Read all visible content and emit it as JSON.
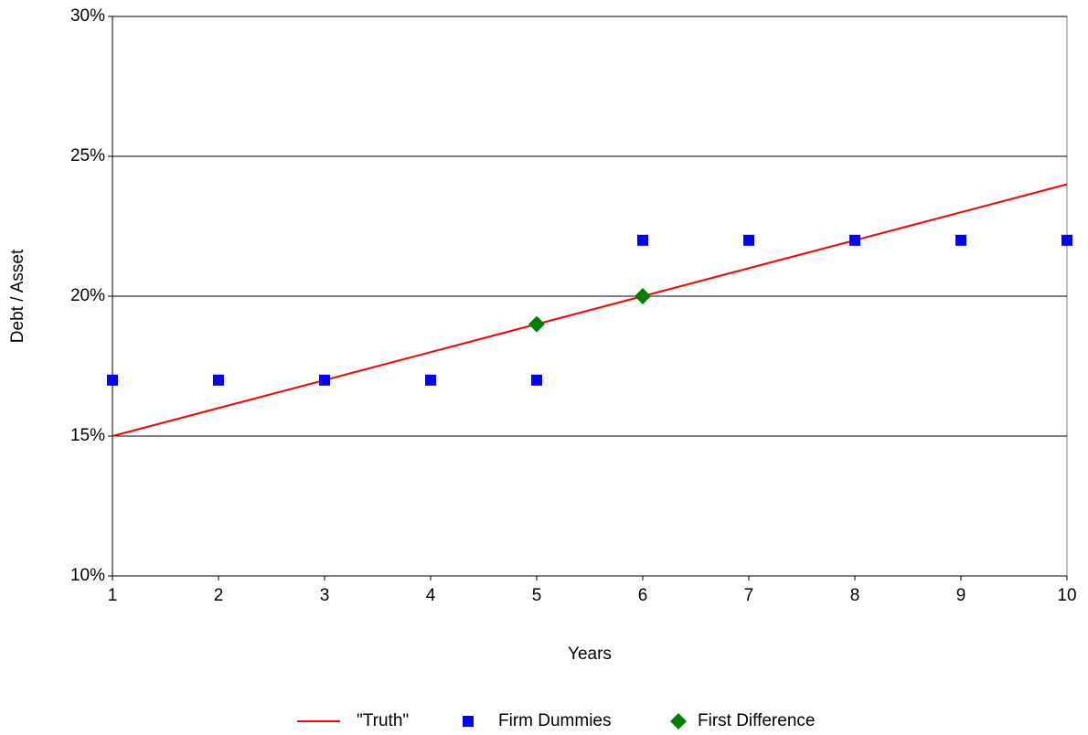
{
  "chart_data": {
    "type": "line",
    "xlabel": "Years",
    "ylabel": "Debt / Asset",
    "xlim": [
      1,
      10
    ],
    "xticks": [
      1,
      2,
      3,
      4,
      5,
      6,
      7,
      8,
      9,
      10
    ],
    "ylim": [
      10,
      30
    ],
    "yticks": [
      {
        "value": 10,
        "label": "10%"
      },
      {
        "value": 15,
        "label": "15%"
      },
      {
        "value": 20,
        "label": "20%"
      },
      {
        "value": 25,
        "label": "25%"
      },
      {
        "value": 30,
        "label": "30%"
      }
    ],
    "grid": true,
    "legend": "bottom",
    "series": [
      {
        "name": "\"Truth\"",
        "color": "#ff0000",
        "marker": "none",
        "x": [
          1,
          2,
          3,
          4,
          5,
          6,
          7,
          8,
          9,
          10
        ],
        "values": [
          15,
          16,
          17,
          18,
          19,
          20,
          21,
          22,
          23,
          24
        ]
      },
      {
        "name": "Firm Dummies",
        "color": "#0000ff",
        "marker": "square",
        "x": [
          1,
          2,
          3,
          4,
          5,
          6,
          7,
          8,
          9,
          10
        ],
        "values": [
          17,
          17,
          17,
          17,
          17,
          22,
          22,
          22,
          22,
          22
        ]
      },
      {
        "name": "First Difference",
        "color": "#008000",
        "marker": "diamond",
        "x": [
          5,
          6
        ],
        "values": [
          19,
          20
        ]
      }
    ]
  }
}
